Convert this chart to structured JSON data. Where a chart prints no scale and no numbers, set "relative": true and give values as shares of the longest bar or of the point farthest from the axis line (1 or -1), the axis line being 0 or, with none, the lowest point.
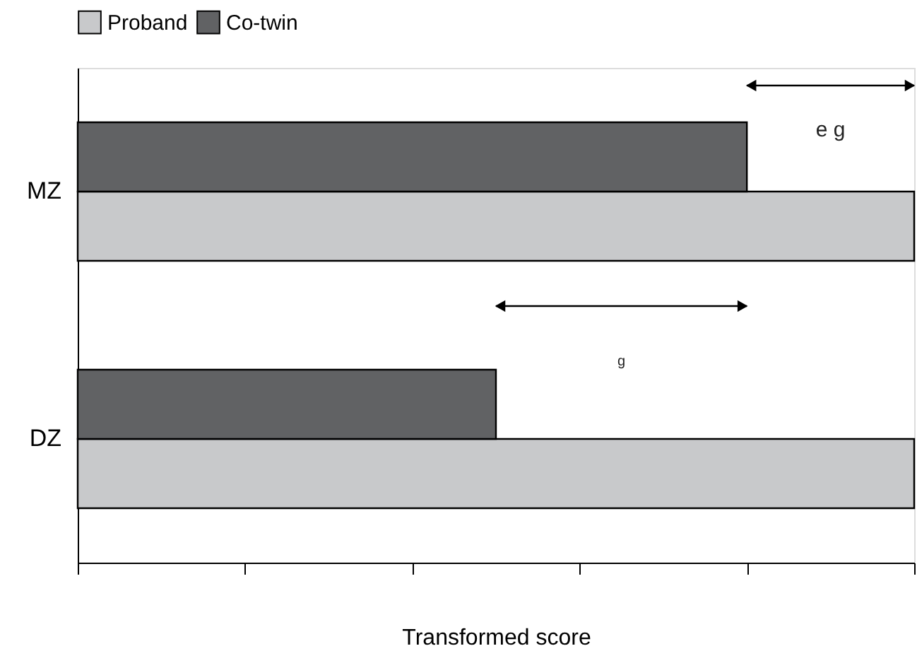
{
  "chart_data": {
    "type": "bar",
    "orientation": "horizontal",
    "relative": true,
    "xlabel": "Transformed score",
    "categories": [
      "MZ",
      "DZ"
    ],
    "series": [
      {
        "name": "Proband",
        "color": "#c8c9cb",
        "values": [
          1,
          1
        ]
      },
      {
        "name": "Co-twin",
        "color": "#616264",
        "values": [
          0.8,
          0.5
        ]
      }
    ],
    "annotations": [
      "e g",
      "g"
    ],
    "legend": "top",
    "grid": false
  }
}
